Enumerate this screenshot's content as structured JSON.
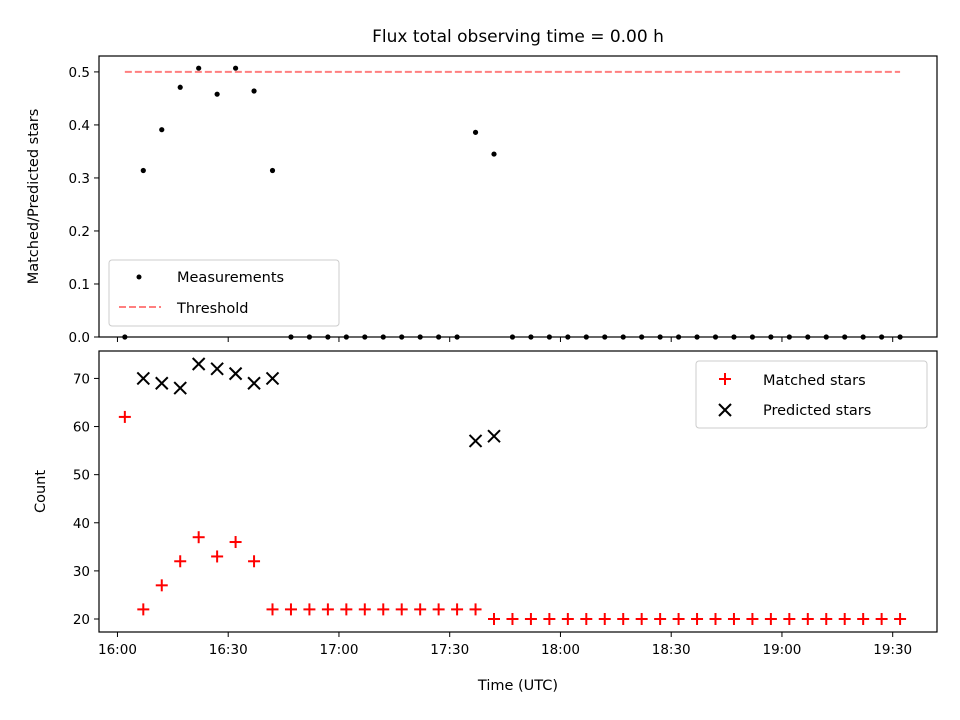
{
  "chart_data": [
    {
      "type": "scatter",
      "title": "Flux total observing time = 0.00 h",
      "xlabel": "",
      "ylabel": "Matched/Predicted stars",
      "x_unit": "time UTC (HH:MM)",
      "xlim": [
        "15:55",
        "19:42"
      ],
      "ylim": [
        0,
        0.53
      ],
      "yticks": [
        "0.0",
        "0.1",
        "0.2",
        "0.3",
        "0.4",
        "0.5"
      ],
      "legend": {
        "position": "lower-left",
        "entries": [
          "Measurements",
          "Threshold"
        ]
      },
      "series": [
        {
          "name": "Measurements",
          "marker": "dot",
          "color": "#000000",
          "points": [
            [
              "16:02",
              0.0
            ],
            [
              "16:07",
              0.314
            ],
            [
              "16:12",
              0.391
            ],
            [
              "16:17",
              0.471
            ],
            [
              "16:22",
              0.507
            ],
            [
              "16:27",
              0.458
            ],
            [
              "16:32",
              0.507
            ],
            [
              "16:37",
              0.464
            ],
            [
              "16:42",
              0.314
            ],
            [
              "16:47",
              0.0
            ],
            [
              "16:52",
              0.0
            ],
            [
              "16:57",
              0.0
            ],
            [
              "17:02",
              0.0
            ],
            [
              "17:07",
              0.0
            ],
            [
              "17:12",
              0.0
            ],
            [
              "17:17",
              0.0
            ],
            [
              "17:22",
              0.0
            ],
            [
              "17:27",
              0.0
            ],
            [
              "17:32",
              0.0
            ],
            [
              "17:37",
              0.386
            ],
            [
              "17:42",
              0.345
            ],
            [
              "17:47",
              0.0
            ],
            [
              "17:52",
              0.0
            ],
            [
              "17:57",
              0.0
            ],
            [
              "18:02",
              0.0
            ],
            [
              "18:07",
              0.0
            ],
            [
              "18:12",
              0.0
            ],
            [
              "18:17",
              0.0
            ],
            [
              "18:22",
              0.0
            ],
            [
              "18:27",
              0.0
            ],
            [
              "18:32",
              0.0
            ],
            [
              "18:37",
              0.0
            ],
            [
              "18:42",
              0.0
            ],
            [
              "18:47",
              0.0
            ],
            [
              "18:52",
              0.0
            ],
            [
              "18:57",
              0.0
            ],
            [
              "19:02",
              0.0
            ],
            [
              "19:07",
              0.0
            ],
            [
              "19:12",
              0.0
            ],
            [
              "19:17",
              0.0
            ],
            [
              "19:22",
              0.0
            ],
            [
              "19:27",
              0.0
            ],
            [
              "19:32",
              0.0
            ]
          ]
        },
        {
          "name": "Threshold",
          "style": "dashed-line",
          "color": "#ff7f7f",
          "points": [
            [
              "16:02",
              0.5
            ],
            [
              "19:32",
              0.5
            ]
          ]
        }
      ]
    },
    {
      "type": "scatter",
      "title": "",
      "xlabel": "Time (UTC)",
      "ylabel": "Count",
      "x_unit": "time UTC (HH:MM)",
      "xlim": [
        "15:55",
        "19:42"
      ],
      "ylim": [
        17.3,
        75.7
      ],
      "xticks": [
        "16:00",
        "16:30",
        "17:00",
        "17:30",
        "18:00",
        "18:30",
        "19:00",
        "19:30"
      ],
      "yticks": [
        "20",
        "30",
        "40",
        "50",
        "60",
        "70"
      ],
      "legend": {
        "position": "top-right",
        "entries": [
          "Matched stars",
          "Predicted stars"
        ]
      },
      "series": [
        {
          "name": "Matched stars",
          "marker": "plus",
          "color": "#ff0000",
          "points": [
            [
              "16:02",
              62
            ],
            [
              "16:07",
              22
            ],
            [
              "16:12",
              27
            ],
            [
              "16:17",
              32
            ],
            [
              "16:22",
              37
            ],
            [
              "16:27",
              33
            ],
            [
              "16:32",
              36
            ],
            [
              "16:37",
              32
            ],
            [
              "16:42",
              22
            ],
            [
              "16:47",
              22
            ],
            [
              "16:52",
              22
            ],
            [
              "16:57",
              22
            ],
            [
              "17:02",
              22
            ],
            [
              "17:07",
              22
            ],
            [
              "17:12",
              22
            ],
            [
              "17:17",
              22
            ],
            [
              "17:22",
              22
            ],
            [
              "17:27",
              22
            ],
            [
              "17:32",
              22
            ],
            [
              "17:37",
              22
            ],
            [
              "17:42",
              20
            ],
            [
              "17:47",
              20
            ],
            [
              "17:52",
              20
            ],
            [
              "17:57",
              20
            ],
            [
              "18:02",
              20
            ],
            [
              "18:07",
              20
            ],
            [
              "18:12",
              20
            ],
            [
              "18:17",
              20
            ],
            [
              "18:22",
              20
            ],
            [
              "18:27",
              20
            ],
            [
              "18:32",
              20
            ],
            [
              "18:37",
              20
            ],
            [
              "18:42",
              20
            ],
            [
              "18:47",
              20
            ],
            [
              "18:52",
              20
            ],
            [
              "18:57",
              20
            ],
            [
              "19:02",
              20
            ],
            [
              "19:07",
              20
            ],
            [
              "19:12",
              20
            ],
            [
              "19:17",
              20
            ],
            [
              "19:22",
              20
            ],
            [
              "19:27",
              20
            ],
            [
              "19:32",
              20
            ]
          ]
        },
        {
          "name": "Predicted stars",
          "marker": "x",
          "color": "#000000",
          "points": [
            [
              "16:07",
              70
            ],
            [
              "16:12",
              69
            ],
            [
              "16:17",
              68
            ],
            [
              "16:22",
              73
            ],
            [
              "16:27",
              72
            ],
            [
              "16:32",
              71
            ],
            [
              "16:37",
              69
            ],
            [
              "16:42",
              70
            ],
            [
              "17:37",
              57
            ],
            [
              "17:42",
              58
            ]
          ]
        }
      ]
    }
  ]
}
